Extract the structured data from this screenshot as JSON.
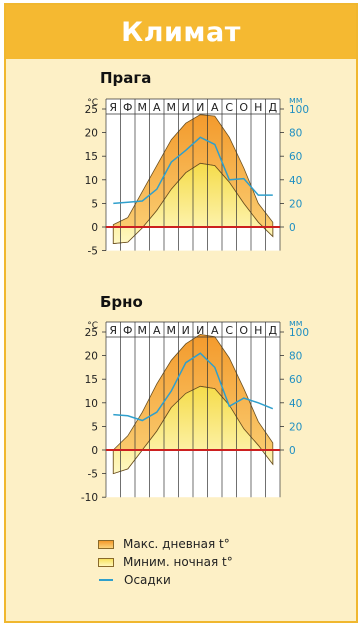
{
  "header": {
    "title": "Климат"
  },
  "chart_data": [
    {
      "type": "area",
      "title": "Прага",
      "months": [
        "Я",
        "Ф",
        "М",
        "А",
        "М",
        "И",
        "И",
        "А",
        "С",
        "О",
        "Н",
        "Д"
      ],
      "left_unit": "°C",
      "right_unit": "мм",
      "temp_ylim": [
        -5,
        25
      ],
      "temp_ticks": [
        25,
        20,
        15,
        10,
        5,
        0,
        -5
      ],
      "precip_ticks": [
        100,
        80,
        60,
        40,
        20,
        0
      ],
      "series": [
        {
          "name": "Макс. дневная t°",
          "values": [
            0.5,
            2,
            7.5,
            13,
            18.5,
            22,
            23.8,
            23.5,
            19,
            12.5,
            5,
            1
          ]
        },
        {
          "name": "Миним. ночная t°",
          "values": [
            -3.5,
            -3.2,
            -0.2,
            3.5,
            8,
            11.5,
            13.5,
            13,
            9.5,
            5,
            1,
            -2
          ]
        },
        {
          "name": "Осадки",
          "values": [
            20,
            21,
            22,
            32,
            55,
            65,
            76,
            70,
            40,
            41,
            27,
            27
          ]
        }
      ]
    },
    {
      "type": "area",
      "title": "Брно",
      "months": [
        "Я",
        "Ф",
        "М",
        "А",
        "М",
        "И",
        "И",
        "А",
        "С",
        "О",
        "Н",
        "Д"
      ],
      "left_unit": "°C",
      "right_unit": "мм",
      "temp_ylim": [
        -10,
        25
      ],
      "temp_ticks": [
        25,
        20,
        15,
        10,
        5,
        0,
        -5,
        -10
      ],
      "precip_ticks": [
        100,
        80,
        60,
        40,
        20,
        0
      ],
      "series": [
        {
          "name": "Макс. дневная t°",
          "values": [
            0,
            3,
            8,
            14,
            19,
            22.5,
            24.5,
            24,
            19.5,
            13,
            6,
            1.5
          ]
        },
        {
          "name": "Миним. ночная t°",
          "values": [
            -5,
            -4,
            0,
            4,
            9,
            12,
            13.5,
            13,
            9.5,
            4.5,
            1,
            -3
          ]
        },
        {
          "name": "Осадки",
          "values": [
            30,
            29,
            25,
            32,
            50,
            74,
            82,
            70,
            37,
            44,
            40,
            35
          ]
        }
      ]
    }
  ],
  "legend": {
    "max": "Макс. дневная  t°",
    "min": "Миним. ночная  t°",
    "precip": "Осадки"
  },
  "colors": {
    "max_top": "#f39a2c",
    "max_bottom": "#fbd37a",
    "min_top": "#f5dc4a",
    "min_bottom": "#fff8c4",
    "precip_line": "#2f9fcc",
    "zero_line": "#cc2020",
    "precip_text": "#1f8fc2"
  }
}
